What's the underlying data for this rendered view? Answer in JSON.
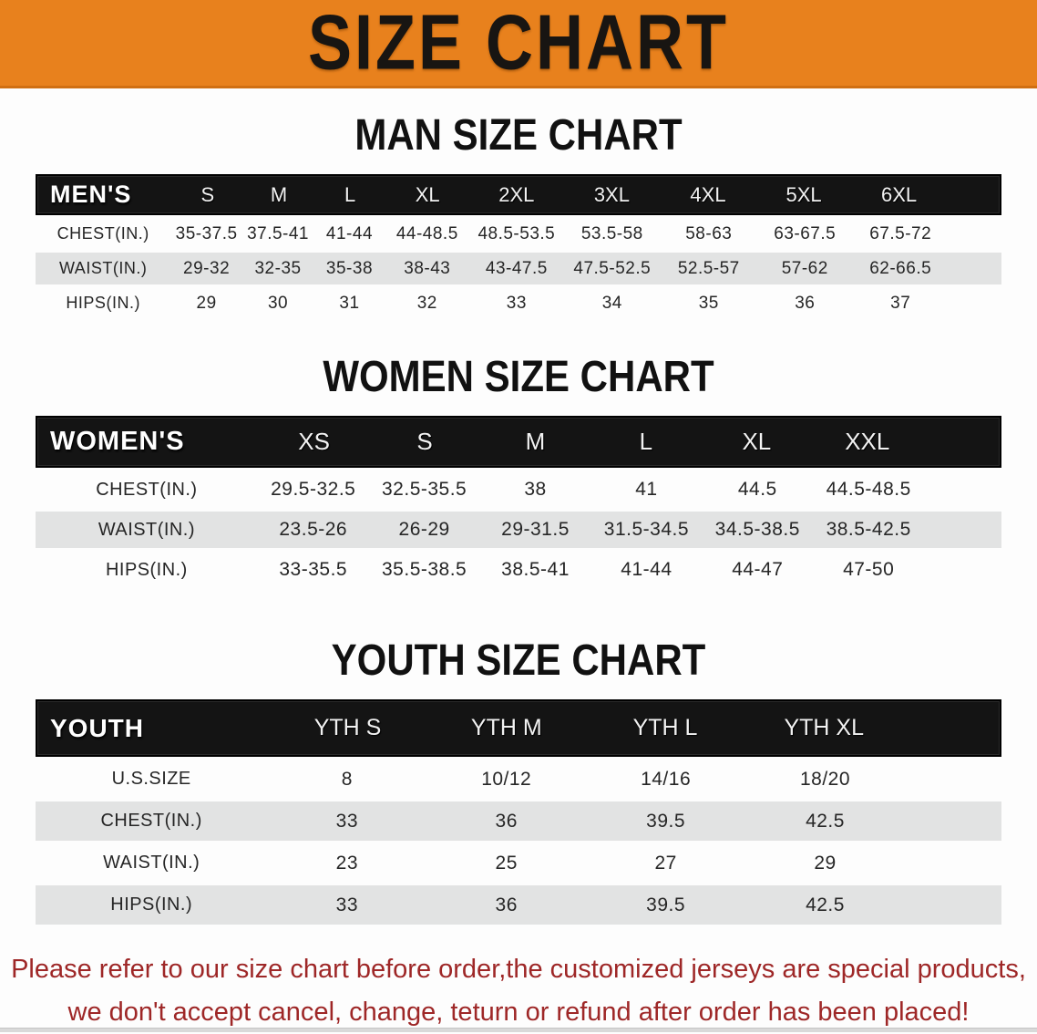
{
  "banner": {
    "title": "SIZE CHART",
    "bg_color": "#e8811d",
    "text_color": "#181512"
  },
  "colors": {
    "table_header_bg": "#141414",
    "row_alt_bg": "#e2e3e3",
    "disclaimer_text": "#9e2727"
  },
  "sections": [
    {
      "id": "men",
      "heading": "MAN SIZE CHART",
      "table": {
        "label": "MEN'S",
        "columns": [
          "S",
          "M",
          "L",
          "XL",
          "2XL",
          "3XL",
          "4XL",
          "5XL",
          "6XL"
        ],
        "rows": [
          {
            "label": "CHEST(IN.)",
            "values": [
              "35-37.5",
              "37.5-41",
              "41-44",
              "44-48.5",
              "48.5-53.5",
              "53.5-58",
              "58-63",
              "63-67.5",
              "67.5-72"
            ]
          },
          {
            "label": "WAIST(IN.)",
            "values": [
              "29-32",
              "32-35",
              "35-38",
              "38-43",
              "43-47.5",
              "47.5-52.5",
              "52.5-57",
              "57-62",
              "62-66.5"
            ]
          },
          {
            "label": "HIPS(IN.)",
            "values": [
              "29",
              "30",
              "31",
              "32",
              "33",
              "34",
              "35",
              "36",
              "37"
            ]
          }
        ]
      }
    },
    {
      "id": "women",
      "heading": "WOMEN SIZE CHART",
      "table": {
        "label": "WOMEN'S",
        "columns": [
          "XS",
          "S",
          "M",
          "L",
          "XL",
          "XXL"
        ],
        "rows": [
          {
            "label": "CHEST(IN.)",
            "values": [
              "29.5-32.5",
              "32.5-35.5",
              "38",
              "41",
              "44.5",
              "44.5-48.5"
            ]
          },
          {
            "label": "WAIST(IN.)",
            "values": [
              "23.5-26",
              "26-29",
              "29-31.5",
              "31.5-34.5",
              "34.5-38.5",
              "38.5-42.5"
            ]
          },
          {
            "label": "HIPS(IN.)",
            "values": [
              "33-35.5",
              "35.5-38.5",
              "38.5-41",
              "41-44",
              "44-47",
              "47-50"
            ]
          }
        ]
      }
    },
    {
      "id": "youth",
      "heading": "YOUTH SIZE CHART",
      "table": {
        "label": "YOUTH",
        "columns": [
          "YTH S",
          "YTH M",
          "YTH L",
          "YTH XL"
        ],
        "rows": [
          {
            "label": "U.S.SIZE",
            "values": [
              "8",
              "10/12",
              "14/16",
              "18/20"
            ]
          },
          {
            "label": "CHEST(IN.)",
            "values": [
              "33",
              "36",
              "39.5",
              "42.5"
            ]
          },
          {
            "label": "WAIST(IN.)",
            "values": [
              "23",
              "25",
              "27",
              "29"
            ]
          },
          {
            "label": "HIPS(IN.)",
            "values": [
              "33",
              "36",
              "39.5",
              "42.5"
            ]
          }
        ]
      }
    }
  ],
  "disclaimer": {
    "lines": [
      "Please refer to our size chart before order,the customized jerseys are special products,",
      "we don't accept cancel, change, teturn or refund after order has been placed!"
    ]
  }
}
